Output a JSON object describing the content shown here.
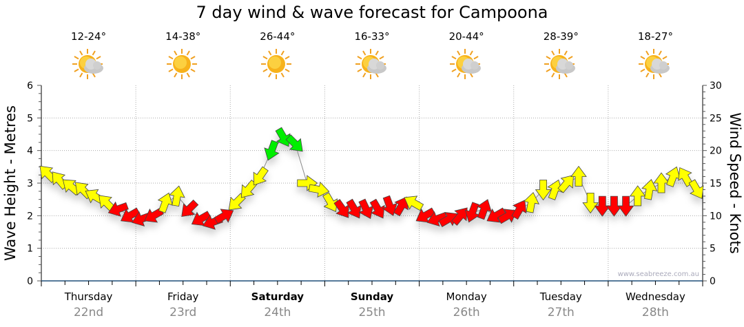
{
  "title": "7 day wind & wave forecast for Campoona",
  "days": [
    {
      "day": "Thursday",
      "date": "22nd",
      "temp": "12-24°",
      "icon": "sun-cloud-icon",
      "bold": false
    },
    {
      "day": "Friday",
      "date": "23rd",
      "temp": "14-38°",
      "icon": "sun-icon",
      "bold": false
    },
    {
      "day": "Saturday",
      "date": "24th",
      "temp": "26-44°",
      "icon": "sun-icon",
      "bold": true
    },
    {
      "day": "Sunday",
      "date": "25th",
      "temp": "16-33°",
      "icon": "sun-cloud-icon",
      "bold": true
    },
    {
      "day": "Monday",
      "date": "26th",
      "temp": "20-44°",
      "icon": "sun-cloud-icon",
      "bold": false
    },
    {
      "day": "Tuesday",
      "date": "27th",
      "temp": "28-39°",
      "icon": "sun-cloud-icon",
      "bold": false
    },
    {
      "day": "Wednesday",
      "date": "28th",
      "temp": "18-27°",
      "icon": "sun-cloud-icon",
      "bold": false
    }
  ],
  "watermark": "www.seabreeze.com.au",
  "colors": {
    "low": "#ff0000",
    "mid": "#ffff00",
    "high": "#00ee00",
    "axis": "#1f4e79"
  },
  "chart_data": {
    "type": "scatter",
    "title": "7 day wind & wave forecast for Campoona",
    "ylabel": "Wave Height - Metres",
    "y2label": "Wind Speed - Knots",
    "ylim": [
      0,
      6
    ],
    "y2lim": [
      0,
      30
    ],
    "yticks": [
      "0",
      "1",
      "2",
      "3",
      "4",
      "5",
      "6"
    ],
    "y2ticks": [
      "0",
      "5",
      "10",
      "15",
      "20",
      "25",
      "30"
    ],
    "interval_hours": 3,
    "wind_speed_knots": [
      16.5,
      15.5,
      14.5,
      14,
      13,
      12,
      11,
      10,
      9.5,
      10,
      12,
      13,
      11,
      9.5,
      9,
      10,
      12,
      14,
      16,
      20,
      22,
      21,
      15,
      14,
      12,
      11,
      11,
      11,
      11,
      11.5,
      11.5,
      12,
      10,
      9.5,
      9.5,
      10,
      10.5,
      11,
      10,
      10,
      11,
      12,
      14,
      14,
      15,
      16,
      12,
      11.5,
      11.5,
      11.5,
      13,
      14,
      15,
      16,
      16,
      14
    ],
    "wind_dir_deg": [
      315,
      320,
      310,
      315,
      300,
      315,
      250,
      240,
      250,
      240,
      20,
      10,
      225,
      240,
      250,
      60,
      225,
      220,
      215,
      200,
      150,
      135,
      90,
      100,
      150,
      145,
      150,
      155,
      150,
      160,
      30,
      300,
      240,
      250,
      60,
      40,
      200,
      20,
      240,
      60,
      30,
      10,
      180,
      20,
      40,
      0,
      180,
      180,
      180,
      180,
      0,
      10,
      0,
      20,
      330,
      150
    ],
    "speed_bands": [
      {
        "max": 12,
        "label": "low"
      },
      {
        "max": 20,
        "label": "mid"
      },
      {
        "max": 99,
        "label": "high"
      }
    ]
  }
}
